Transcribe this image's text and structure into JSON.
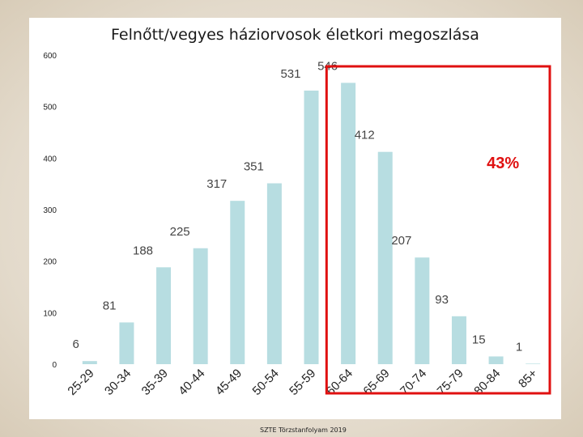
{
  "chart_data": {
    "type": "bar",
    "title": "Felnőtt/vegyes háziorvosok életkori megoszlása",
    "xlabel": "",
    "ylabel": "",
    "ylim": [
      0,
      600
    ],
    "yticks": [
      0,
      100,
      200,
      300,
      400,
      500,
      600
    ],
    "grid": false,
    "categories": [
      "25-29",
      "30-34",
      "35-39",
      "40-44",
      "45-49",
      "50-54",
      "55-59",
      "60-64",
      "65-69",
      "70-74",
      "75-79",
      "80-84",
      "85+"
    ],
    "values": [
      6,
      81,
      188,
      225,
      317,
      351,
      531,
      546,
      412,
      207,
      93,
      15,
      1
    ],
    "bar_color": "#b7dde1",
    "annotation": {
      "text": "43%",
      "color": "#e01010",
      "highlight_from": "60-64",
      "highlight_to": "85+"
    }
  },
  "footer": "SZTE Törzstanfolyam 2019"
}
